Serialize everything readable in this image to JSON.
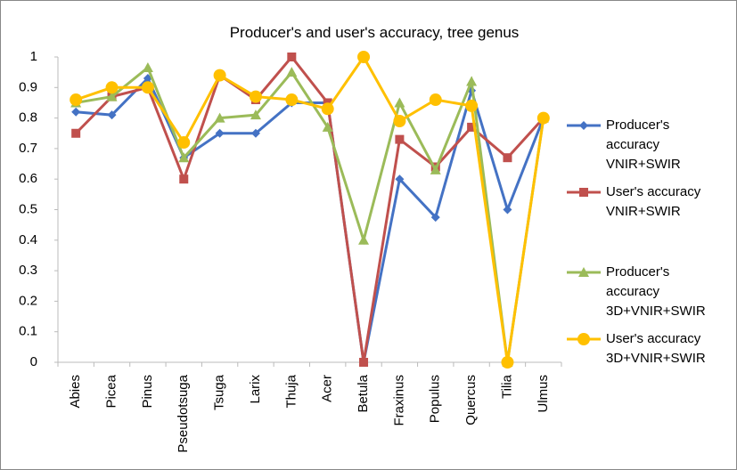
{
  "chart_data": {
    "type": "line",
    "title": "Producer's and user's accuracy, tree genus",
    "categories": [
      "Abies",
      "Picea",
      "Pinus",
      "Pseudotsuga",
      "Tsuga",
      "Larix",
      "Thuja",
      "Acer",
      "Betula",
      "Fraxinus",
      "Populus",
      "Quercus",
      "Tilia",
      "Ulmus"
    ],
    "series": [
      {
        "name": "Producer's accuracy VNIR+SWIR",
        "color": "#4472c4",
        "marker": "diamond",
        "values": [
          0.82,
          0.81,
          0.93,
          0.67,
          0.75,
          0.75,
          0.85,
          0.85,
          0,
          0.6,
          0.475,
          0.89,
          0.5,
          0.8
        ]
      },
      {
        "name": "User's accuracy VNIR+SWIR",
        "color": "#c0504d",
        "marker": "square",
        "values": [
          0.75,
          0.87,
          0.9,
          0.6,
          0.94,
          0.86,
          1.0,
          0.85,
          0,
          0.73,
          0.64,
          0.77,
          0.67,
          0.8
        ]
      },
      {
        "name": "Producer's accuracy 3D+VNIR+SWIR",
        "color": "#9bbb59",
        "marker": "triangle",
        "values": [
          0.85,
          0.87,
          0.965,
          0.67,
          0.8,
          0.81,
          0.95,
          0.77,
          0.4,
          0.85,
          0.63,
          0.92,
          0,
          0.8
        ]
      },
      {
        "name": "User's accuracy 3D+VNIR+SWIR",
        "color": "#ffc000",
        "marker": "circle",
        "values": [
          0.86,
          0.9,
          0.9,
          0.72,
          0.94,
          0.87,
          0.86,
          0.83,
          1.0,
          0.79,
          0.86,
          0.84,
          0,
          0.8
        ]
      }
    ],
    "ylim": [
      0,
      1
    ],
    "yticks": [
      0,
      0.1,
      0.2,
      0.3,
      0.4,
      0.5,
      0.6,
      0.7,
      0.8,
      0.9,
      1
    ],
    "grid": false
  }
}
